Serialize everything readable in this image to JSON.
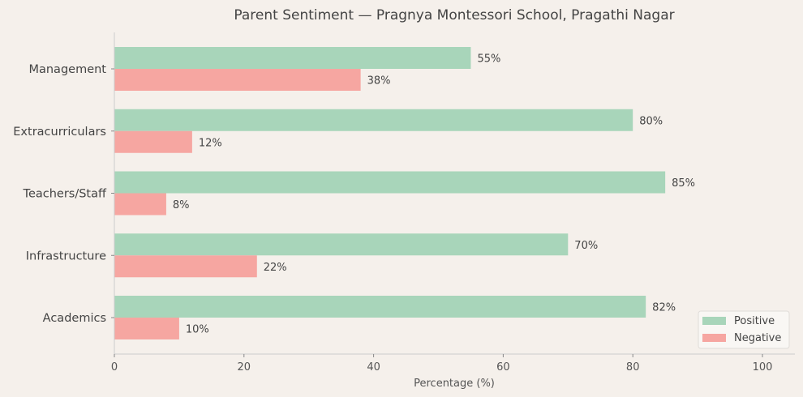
{
  "chart_data": {
    "type": "bar",
    "orientation": "horizontal",
    "title": "Parent Sentiment — Pragnya Montessori School, Pragathi Nagar",
    "xlabel": "Percentage (%)",
    "ylabel": "",
    "xlim": [
      0,
      105
    ],
    "xticks": [
      0,
      20,
      40,
      60,
      80,
      100
    ],
    "categories": [
      "Management",
      "Extracurriculars",
      "Teachers/Staff",
      "Infrastructure",
      "Academics"
    ],
    "series": [
      {
        "name": "Positive",
        "color": "#a8d5ba",
        "values": [
          55,
          80,
          85,
          70,
          82
        ],
        "labels": [
          "55%",
          "80%",
          "85%",
          "70%",
          "82%"
        ]
      },
      {
        "name": "Negative",
        "color": "#f6a6a1",
        "values": [
          38,
          12,
          8,
          22,
          10
        ],
        "labels": [
          "38%",
          "12%",
          "8%",
          "22%",
          "10%"
        ]
      }
    ],
    "grid": false,
    "legend": "bottom-right"
  }
}
